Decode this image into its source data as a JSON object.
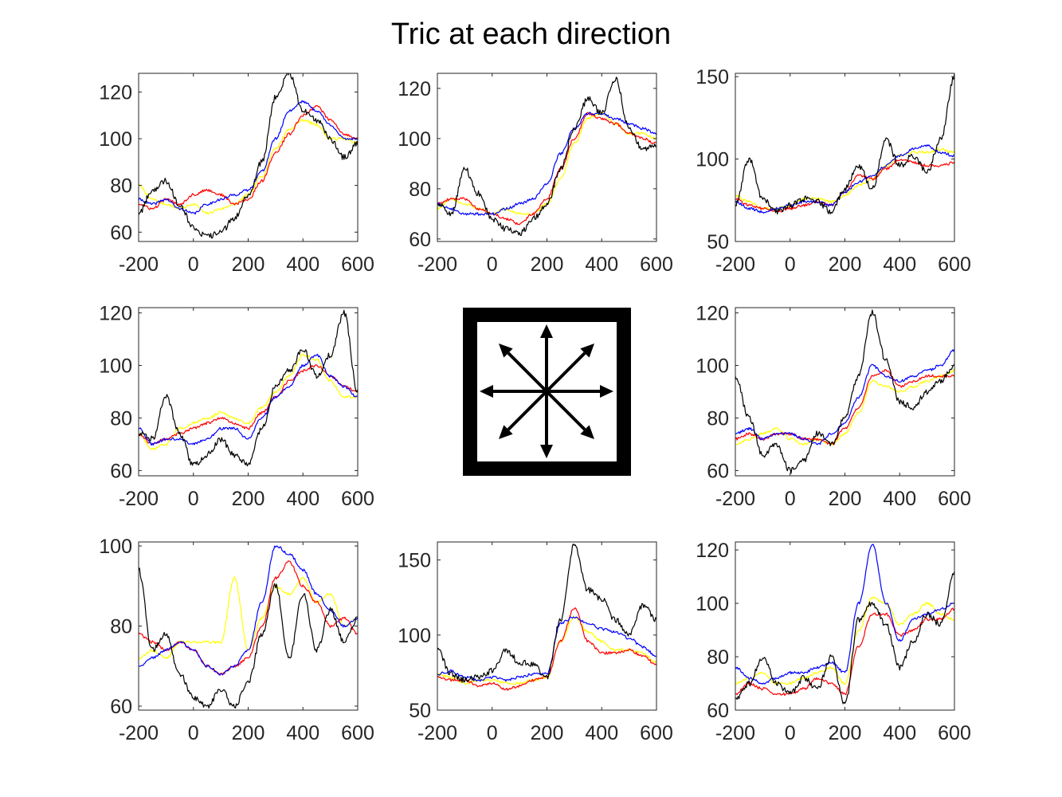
{
  "title": "Tric at each direction",
  "colors": {
    "black": "#000000",
    "red": "#ff0000",
    "blue": "#0000ff",
    "yellow": "#ffff00",
    "axis": "#262626"
  },
  "center_icon": "eight-direction-arrows-icon",
  "chart_data": [
    {
      "type": "line",
      "panel": "top-left",
      "xlim": [
        -200,
        600
      ],
      "ylim": [
        56,
        128
      ],
      "xticks": [
        -200,
        0,
        200,
        400,
        600
      ],
      "yticks": [
        60,
        80,
        100,
        120
      ],
      "x": [
        -200,
        -150,
        -100,
        -50,
        0,
        50,
        100,
        150,
        200,
        250,
        300,
        350,
        400,
        450,
        500,
        550,
        600
      ],
      "series": [
        {
          "color": "black",
          "values": [
            68,
            78,
            82,
            72,
            62,
            58,
            60,
            66,
            76,
            90,
            118,
            128,
            112,
            108,
            100,
            92,
            98
          ]
        },
        {
          "color": "red",
          "values": [
            72,
            70,
            74,
            72,
            76,
            78,
            76,
            72,
            74,
            82,
            94,
            102,
            110,
            114,
            108,
            102,
            100
          ]
        },
        {
          "color": "blue",
          "values": [
            74,
            72,
            74,
            70,
            68,
            72,
            74,
            76,
            78,
            86,
            100,
            112,
            116,
            112,
            106,
            100,
            100
          ]
        },
        {
          "color": "yellow",
          "values": [
            80,
            74,
            72,
            70,
            72,
            68,
            70,
            72,
            76,
            84,
            96,
            104,
            108,
            106,
            100,
            100,
            98
          ]
        }
      ]
    },
    {
      "type": "line",
      "panel": "top-center",
      "xlim": [
        -200,
        600
      ],
      "ylim": [
        59,
        126
      ],
      "xticks": [
        -200,
        0,
        200,
        400,
        600
      ],
      "yticks": [
        60,
        80,
        100,
        120
      ],
      "x": [
        -200,
        -150,
        -100,
        -50,
        0,
        50,
        100,
        150,
        200,
        250,
        300,
        350,
        400,
        450,
        500,
        550,
        600
      ],
      "series": [
        {
          "color": "black",
          "values": [
            74,
            70,
            88,
            78,
            68,
            64,
            62,
            68,
            74,
            88,
            104,
            116,
            110,
            124,
            104,
            96,
            98
          ]
        },
        {
          "color": "red",
          "values": [
            74,
            76,
            76,
            72,
            70,
            68,
            66,
            70,
            76,
            88,
            100,
            110,
            108,
            106,
            102,
            100,
            98
          ]
        },
        {
          "color": "blue",
          "values": [
            74,
            72,
            70,
            70,
            70,
            72,
            74,
            76,
            82,
            94,
            104,
            110,
            110,
            108,
            106,
            104,
            102
          ]
        },
        {
          "color": "yellow",
          "values": [
            72,
            76,
            74,
            72,
            70,
            72,
            70,
            70,
            74,
            84,
            98,
            108,
            110,
            106,
            102,
            102,
            100
          ]
        }
      ]
    },
    {
      "type": "line",
      "panel": "top-right",
      "xlim": [
        -200,
        600
      ],
      "ylim": [
        50,
        152
      ],
      "xticks": [
        -200,
        0,
        200,
        400,
        600
      ],
      "yticks": [
        50,
        100,
        150
      ],
      "x": [
        -200,
        -150,
        -100,
        -50,
        0,
        50,
        100,
        150,
        200,
        250,
        300,
        350,
        400,
        450,
        500,
        550,
        600
      ],
      "series": [
        {
          "color": "black",
          "values": [
            72,
            100,
            76,
            68,
            72,
            76,
            74,
            68,
            82,
            96,
            82,
            112,
            96,
            102,
            92,
            112,
            150
          ]
        },
        {
          "color": "red",
          "values": [
            76,
            72,
            70,
            68,
            70,
            72,
            74,
            72,
            80,
            90,
            88,
            94,
            100,
            98,
            96,
            96,
            98
          ]
        },
        {
          "color": "blue",
          "values": [
            74,
            70,
            68,
            70,
            72,
            74,
            74,
            72,
            80,
            86,
            90,
            96,
            102,
            106,
            108,
            104,
            102
          ]
        },
        {
          "color": "yellow",
          "values": [
            78,
            74,
            70,
            70,
            72,
            76,
            76,
            74,
            78,
            84,
            88,
            96,
            102,
            104,
            104,
            106,
            104
          ]
        }
      ]
    },
    {
      "type": "line",
      "panel": "middle-left",
      "xlim": [
        -200,
        600
      ],
      "ylim": [
        58,
        122
      ],
      "xticks": [
        -200,
        0,
        200,
        400,
        600
      ],
      "yticks": [
        60,
        80,
        100,
        120
      ],
      "x": [
        -200,
        -150,
        -100,
        -50,
        0,
        50,
        100,
        150,
        200,
        250,
        300,
        350,
        400,
        450,
        500,
        550,
        600
      ],
      "series": [
        {
          "color": "black",
          "values": [
            74,
            72,
            88,
            74,
            62,
            66,
            72,
            66,
            62,
            76,
            92,
            98,
            106,
            96,
            104,
            120,
            90
          ]
        },
        {
          "color": "red",
          "values": [
            74,
            70,
            72,
            74,
            76,
            78,
            80,
            78,
            76,
            82,
            88,
            94,
            98,
            100,
            96,
            92,
            90
          ]
        },
        {
          "color": "blue",
          "values": [
            76,
            70,
            72,
            72,
            70,
            72,
            76,
            76,
            72,
            80,
            88,
            92,
            100,
            104,
            96,
            92,
            88
          ]
        },
        {
          "color": "yellow",
          "values": [
            74,
            68,
            70,
            76,
            78,
            80,
            82,
            80,
            78,
            84,
            90,
            96,
            104,
            102,
            94,
            88,
            88
          ]
        }
      ]
    },
    {
      "type": "line",
      "panel": "middle-right",
      "xlim": [
        -200,
        600
      ],
      "ylim": [
        58,
        122
      ],
      "xticks": [
        -200,
        0,
        200,
        400,
        600
      ],
      "yticks": [
        60,
        80,
        100,
        120
      ],
      "x": [
        -200,
        -150,
        -100,
        -50,
        0,
        50,
        100,
        150,
        200,
        250,
        300,
        350,
        400,
        450,
        500,
        550,
        600
      ],
      "series": [
        {
          "color": "black",
          "values": [
            96,
            80,
            66,
            70,
            60,
            64,
            74,
            70,
            80,
            96,
            120,
            102,
            86,
            84,
            90,
            94,
            100
          ]
        },
        {
          "color": "red",
          "values": [
            72,
            74,
            72,
            74,
            74,
            72,
            72,
            70,
            76,
            84,
            96,
            98,
            92,
            94,
            96,
            96,
            96
          ]
        },
        {
          "color": "blue",
          "values": [
            74,
            76,
            72,
            74,
            74,
            72,
            70,
            74,
            78,
            88,
            100,
            96,
            94,
            96,
            98,
            100,
            106
          ]
        },
        {
          "color": "yellow",
          "values": [
            70,
            72,
            74,
            76,
            72,
            70,
            72,
            70,
            74,
            82,
            94,
            92,
            90,
            92,
            94,
            96,
            98
          ]
        }
      ]
    },
    {
      "type": "line",
      "panel": "bottom-left",
      "xlim": [
        -200,
        600
      ],
      "ylim": [
        59,
        101
      ],
      "xticks": [
        -200,
        0,
        200,
        400,
        600
      ],
      "yticks": [
        60,
        80,
        100
      ],
      "x": [
        -200,
        -150,
        -100,
        -50,
        0,
        50,
        100,
        150,
        200,
        250,
        300,
        350,
        400,
        450,
        500,
        550,
        600
      ],
      "series": [
        {
          "color": "black",
          "values": [
            94,
            74,
            78,
            68,
            62,
            60,
            64,
            60,
            66,
            78,
            90,
            72,
            88,
            74,
            84,
            76,
            82
          ]
        },
        {
          "color": "red",
          "values": [
            78,
            76,
            74,
            76,
            74,
            70,
            68,
            70,
            72,
            80,
            92,
            96,
            90,
            86,
            80,
            82,
            78
          ]
        },
        {
          "color": "blue",
          "values": [
            70,
            72,
            74,
            76,
            74,
            70,
            68,
            70,
            74,
            86,
            100,
            98,
            94,
            88,
            84,
            80,
            82
          ]
        },
        {
          "color": "yellow",
          "values": [
            72,
            74,
            72,
            76,
            76,
            76,
            76,
            92,
            74,
            82,
            90,
            88,
            92,
            86,
            88,
            80,
            82
          ]
        }
      ]
    },
    {
      "type": "line",
      "panel": "bottom-center",
      "xlim": [
        -200,
        600
      ],
      "ylim": [
        50,
        162
      ],
      "xticks": [
        -200,
        0,
        200,
        400,
        600
      ],
      "yticks": [
        50,
        100,
        150
      ],
      "x": [
        -200,
        -150,
        -100,
        -50,
        0,
        50,
        100,
        150,
        200,
        250,
        300,
        350,
        400,
        450,
        500,
        550,
        600
      ],
      "series": [
        {
          "color": "black",
          "values": [
            90,
            74,
            70,
            72,
            76,
            90,
            82,
            80,
            72,
            110,
            160,
            130,
            124,
            110,
            100,
            120,
            110
          ]
        },
        {
          "color": "red",
          "values": [
            72,
            70,
            70,
            66,
            68,
            64,
            66,
            70,
            72,
            96,
            118,
            96,
            88,
            88,
            90,
            86,
            80
          ]
        },
        {
          "color": "blue",
          "values": [
            74,
            76,
            72,
            70,
            72,
            70,
            72,
            74,
            74,
            108,
            112,
            108,
            104,
            102,
            98,
            92,
            86
          ]
        },
        {
          "color": "yellow",
          "values": [
            74,
            72,
            68,
            70,
            70,
            68,
            68,
            70,
            72,
            96,
            112,
            102,
            96,
            90,
            90,
            88,
            82
          ]
        }
      ]
    },
    {
      "type": "line",
      "panel": "bottom-right",
      "xlim": [
        -200,
        600
      ],
      "ylim": [
        60,
        123
      ],
      "xticks": [
        -200,
        0,
        200,
        400,
        600
      ],
      "yticks": [
        60,
        80,
        100,
        120
      ],
      "x": [
        -200,
        -150,
        -100,
        -50,
        0,
        50,
        100,
        150,
        200,
        250,
        300,
        350,
        400,
        450,
        500,
        550,
        600
      ],
      "series": [
        {
          "color": "black",
          "values": [
            64,
            70,
            80,
            70,
            66,
            72,
            68,
            80,
            62,
            94,
            100,
            92,
            76,
            86,
            96,
            92,
            112
          ]
        },
        {
          "color": "red",
          "values": [
            66,
            70,
            68,
            66,
            66,
            68,
            72,
            70,
            66,
            84,
            96,
            96,
            88,
            90,
            94,
            94,
            98
          ]
        },
        {
          "color": "blue",
          "values": [
            76,
            72,
            70,
            72,
            74,
            74,
            76,
            78,
            74,
            100,
            122,
            100,
            86,
            94,
            96,
            98,
            100
          ]
        },
        {
          "color": "yellow",
          "values": [
            70,
            72,
            74,
            70,
            70,
            72,
            74,
            76,
            70,
            90,
            102,
            100,
            92,
            96,
            100,
            96,
            94
          ]
        }
      ]
    }
  ]
}
